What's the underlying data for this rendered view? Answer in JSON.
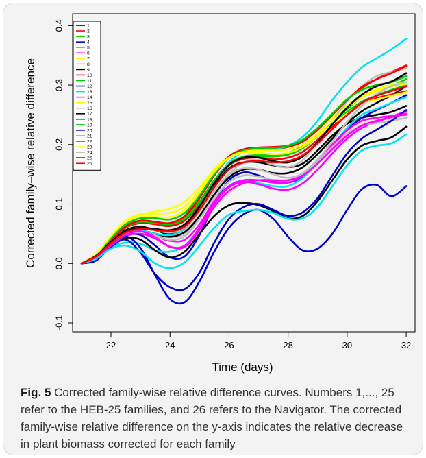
{
  "figure": {
    "label": "Fig. 5",
    "caption": "Corrected family-wise relative difference curves. Numbers 1,..., 25 refer to the HEB-25 families, and 26 refers to the Navigator. The corrected family-wise relative difference on the y-axis indicates the relative decrease in plant biomass corrected for each family"
  },
  "chart_data": {
    "type": "line",
    "xlabel": "Time (days)",
    "ylabel": "Corrected family–wise relative difference",
    "xlim": [
      20.7,
      32.3
    ],
    "ylim": [
      -0.115,
      0.42
    ],
    "xticks": [
      22,
      24,
      26,
      28,
      30,
      32
    ],
    "yticks": [
      -0.1,
      0.0,
      0.1,
      0.2,
      0.3,
      0.4
    ],
    "grid": false,
    "legend_position": "top-left",
    "x": [
      21,
      21.5,
      22,
      22.5,
      23,
      23.5,
      24,
      24.5,
      25,
      25.5,
      26,
      26.5,
      27,
      27.5,
      28,
      28.5,
      29,
      29.5,
      30,
      30.5,
      31,
      31.5,
      32
    ],
    "series": [
      {
        "name": "1",
        "color": "#000000",
        "values": [
          0.0,
          0.013,
          0.038,
          0.056,
          0.062,
          0.056,
          0.05,
          0.062,
          0.092,
          0.13,
          0.16,
          0.17,
          0.17,
          0.165,
          0.162,
          0.168,
          0.19,
          0.215,
          0.235,
          0.245,
          0.25,
          0.255,
          0.265
        ]
      },
      {
        "name": "2",
        "color": "#ff0000",
        "values": [
          0.0,
          0.015,
          0.04,
          0.062,
          0.072,
          0.068,
          0.065,
          0.078,
          0.11,
          0.148,
          0.178,
          0.19,
          0.192,
          0.192,
          0.196,
          0.205,
          0.225,
          0.25,
          0.275,
          0.295,
          0.31,
          0.322,
          0.333
        ]
      },
      {
        "name": "3",
        "color": "#00cd00",
        "values": [
          0.0,
          0.014,
          0.04,
          0.063,
          0.072,
          0.07,
          0.067,
          0.076,
          0.104,
          0.14,
          0.168,
          0.18,
          0.182,
          0.182,
          0.186,
          0.198,
          0.218,
          0.24,
          0.26,
          0.28,
          0.29,
          0.298,
          0.31
        ]
      },
      {
        "name": "4",
        "color": "#0000cd",
        "values": [
          0.0,
          0.01,
          0.03,
          0.047,
          0.048,
          0.03,
          0.01,
          0.012,
          0.048,
          0.1,
          0.14,
          0.153,
          0.148,
          0.138,
          0.136,
          0.146,
          0.17,
          0.198,
          0.225,
          0.245,
          0.258,
          0.27,
          0.283
        ]
      },
      {
        "name": "5",
        "color": "#00e5ee",
        "values": [
          0.0,
          0.01,
          0.028,
          0.035,
          0.033,
          0.022,
          0.02,
          0.03,
          0.06,
          0.1,
          0.13,
          0.14,
          0.135,
          0.13,
          0.13,
          0.144,
          0.17,
          0.198,
          0.228,
          0.25,
          0.26,
          0.27,
          0.28
        ]
      },
      {
        "name": "6",
        "color": "#ff00ff",
        "values": [
          0.0,
          0.011,
          0.03,
          0.046,
          0.05,
          0.042,
          0.028,
          0.03,
          0.06,
          0.1,
          0.128,
          0.137,
          0.133,
          0.126,
          0.124,
          0.135,
          0.158,
          0.185,
          0.21,
          0.228,
          0.238,
          0.247,
          0.256
        ]
      },
      {
        "name": "7",
        "color": "#ffff00",
        "values": [
          0.0,
          0.016,
          0.045,
          0.071,
          0.082,
          0.087,
          0.092,
          0.104,
          0.128,
          0.158,
          0.18,
          0.19,
          0.194,
          0.195,
          0.198,
          0.208,
          0.226,
          0.246,
          0.266,
          0.283,
          0.293,
          0.3,
          0.305
        ]
      },
      {
        "name": "8",
        "color": "#bebebe",
        "values": [
          0.0,
          0.012,
          0.036,
          0.052,
          0.054,
          0.048,
          0.044,
          0.05,
          0.076,
          0.115,
          0.15,
          0.17,
          0.174,
          0.166,
          0.162,
          0.174,
          0.205,
          0.24,
          0.272,
          0.298,
          0.315,
          0.322,
          0.328
        ]
      },
      {
        "name": "9",
        "color": "#000000",
        "values": [
          0.0,
          0.012,
          0.034,
          0.05,
          0.055,
          0.05,
          0.045,
          0.053,
          0.08,
          0.116,
          0.145,
          0.158,
          0.158,
          0.152,
          0.152,
          0.162,
          0.184,
          0.21,
          0.236,
          0.256,
          0.27,
          0.283,
          0.298
        ]
      },
      {
        "name": "10",
        "color": "#ff0000",
        "values": [
          0.0,
          0.013,
          0.038,
          0.06,
          0.068,
          0.066,
          0.063,
          0.072,
          0.1,
          0.136,
          0.165,
          0.176,
          0.178,
          0.175,
          0.178,
          0.188,
          0.208,
          0.23,
          0.25,
          0.268,
          0.278,
          0.284,
          0.29
        ]
      },
      {
        "name": "11",
        "color": "#00cd00",
        "values": [
          0.0,
          0.014,
          0.04,
          0.061,
          0.07,
          0.068,
          0.066,
          0.075,
          0.102,
          0.138,
          0.166,
          0.178,
          0.18,
          0.18,
          0.183,
          0.194,
          0.214,
          0.235,
          0.255,
          0.272,
          0.283,
          0.292,
          0.3
        ]
      },
      {
        "name": "12",
        "color": "#0000cd",
        "values": [
          0.0,
          0.006,
          0.03,
          0.045,
          0.026,
          -0.02,
          -0.06,
          -0.065,
          -0.03,
          0.02,
          0.06,
          0.083,
          0.09,
          0.075,
          0.045,
          0.022,
          0.025,
          0.05,
          0.09,
          0.125,
          0.132,
          0.113,
          0.13
        ]
      },
      {
        "name": "13",
        "color": "#00e5ee",
        "values": [
          0.0,
          0.013,
          0.035,
          0.05,
          0.055,
          0.05,
          0.048,
          0.058,
          0.09,
          0.135,
          0.17,
          0.188,
          0.192,
          0.192,
          0.198,
          0.213,
          0.24,
          0.275,
          0.305,
          0.33,
          0.345,
          0.36,
          0.378
        ]
      },
      {
        "name": "14",
        "color": "#ff00ff",
        "values": [
          0.0,
          0.012,
          0.033,
          0.05,
          0.054,
          0.046,
          0.038,
          0.04,
          0.066,
          0.105,
          0.13,
          0.14,
          0.14,
          0.136,
          0.136,
          0.148,
          0.172,
          0.2,
          0.224,
          0.24,
          0.245,
          0.248,
          0.25
        ]
      },
      {
        "name": "15",
        "color": "#ffff00",
        "values": [
          0.0,
          0.015,
          0.044,
          0.068,
          0.078,
          0.078,
          0.078,
          0.09,
          0.118,
          0.152,
          0.177,
          0.186,
          0.186,
          0.184,
          0.186,
          0.196,
          0.214,
          0.234,
          0.252,
          0.268,
          0.276,
          0.282,
          0.288
        ]
      },
      {
        "name": "16",
        "color": "#bebebe",
        "values": [
          0.0,
          0.012,
          0.034,
          0.05,
          0.054,
          0.046,
          0.04,
          0.046,
          0.075,
          0.11,
          0.137,
          0.148,
          0.146,
          0.14,
          0.14,
          0.15,
          0.172,
          0.196,
          0.218,
          0.232,
          0.236,
          0.24,
          0.245
        ]
      },
      {
        "name": "17",
        "color": "#000000",
        "values": [
          0.0,
          0.01,
          0.03,
          0.043,
          0.04,
          0.022,
          0.01,
          0.02,
          0.05,
          0.08,
          0.098,
          0.102,
          0.098,
          0.088,
          0.076,
          0.08,
          0.105,
          0.14,
          0.175,
          0.198,
          0.206,
          0.212,
          0.23
        ]
      },
      {
        "name": "18",
        "color": "#ff0000",
        "values": [
          0.0,
          0.015,
          0.04,
          0.062,
          0.072,
          0.07,
          0.068,
          0.08,
          0.112,
          0.15,
          0.18,
          0.192,
          0.195,
          0.196,
          0.198,
          0.206,
          0.225,
          0.25,
          0.275,
          0.297,
          0.31,
          0.32,
          0.332
        ]
      },
      {
        "name": "19",
        "color": "#00cd00",
        "values": [
          0.0,
          0.015,
          0.042,
          0.066,
          0.076,
          0.076,
          0.074,
          0.085,
          0.114,
          0.15,
          0.178,
          0.19,
          0.194,
          0.194,
          0.198,
          0.208,
          0.228,
          0.252,
          0.276,
          0.292,
          0.3,
          0.305,
          0.315
        ]
      },
      {
        "name": "20",
        "color": "#0000cd",
        "values": [
          0.0,
          0.005,
          0.028,
          0.04,
          0.018,
          -0.018,
          -0.04,
          -0.043,
          -0.015,
          0.035,
          0.075,
          0.095,
          0.1,
          0.09,
          0.08,
          0.086,
          0.11,
          0.148,
          0.185,
          0.21,
          0.225,
          0.24,
          0.258
        ]
      },
      {
        "name": "21",
        "color": "#00e5ee",
        "values": [
          0.0,
          0.008,
          0.025,
          0.03,
          0.02,
          0.0,
          -0.008,
          0.002,
          0.03,
          0.06,
          0.082,
          0.088,
          0.09,
          0.085,
          0.075,
          0.076,
          0.095,
          0.13,
          0.165,
          0.19,
          0.198,
          0.202,
          0.217
        ]
      },
      {
        "name": "22",
        "color": "#ff00ff",
        "values": [
          0.0,
          0.011,
          0.03,
          0.048,
          0.054,
          0.044,
          0.028,
          0.028,
          0.056,
          0.095,
          0.122,
          0.135,
          0.14,
          0.14,
          0.14,
          0.148,
          0.168,
          0.192,
          0.215,
          0.232,
          0.24,
          0.246,
          0.252
        ]
      },
      {
        "name": "23",
        "color": "#ffff00",
        "values": [
          0.0,
          0.016,
          0.046,
          0.072,
          0.083,
          0.084,
          0.085,
          0.096,
          0.122,
          0.154,
          0.178,
          0.188,
          0.19,
          0.19,
          0.192,
          0.2,
          0.218,
          0.24,
          0.262,
          0.28,
          0.29,
          0.297,
          0.302
        ]
      },
      {
        "name": "24",
        "color": "#bebebe",
        "values": [
          0.0,
          0.012,
          0.035,
          0.054,
          0.06,
          0.056,
          0.052,
          0.06,
          0.088,
          0.122,
          0.15,
          0.16,
          0.158,
          0.15,
          0.144,
          0.152,
          0.175,
          0.205,
          0.238,
          0.265,
          0.285,
          0.298,
          0.305
        ]
      },
      {
        "name": "25",
        "color": "#000000",
        "values": [
          0.0,
          0.013,
          0.036,
          0.054,
          0.06,
          0.058,
          0.056,
          0.066,
          0.096,
          0.135,
          0.166,
          0.178,
          0.178,
          0.172,
          0.17,
          0.18,
          0.204,
          0.234,
          0.262,
          0.284,
          0.298,
          0.306,
          0.32
        ]
      },
      {
        "name": "26",
        "color": "#ff0000",
        "values": [
          0.0,
          0.012,
          0.034,
          0.052,
          0.058,
          0.056,
          0.054,
          0.062,
          0.09,
          0.128,
          0.158,
          0.17,
          0.172,
          0.17,
          0.172,
          0.182,
          0.202,
          0.226,
          0.25,
          0.27,
          0.282,
          0.29,
          0.298
        ]
      }
    ]
  }
}
